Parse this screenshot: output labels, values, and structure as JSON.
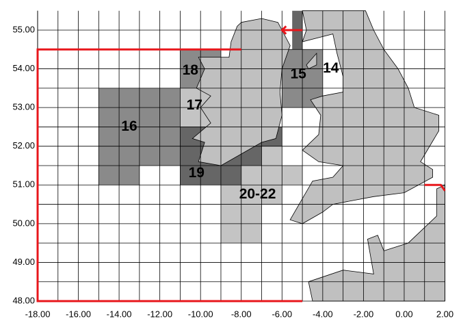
{
  "chart_data": {
    "type": "map",
    "xlim": [
      -18,
      2
    ],
    "ylim": [
      48,
      55.5
    ],
    "xticks": [
      {
        "value": -18,
        "label": "-18.00"
      },
      {
        "value": -16,
        "label": "-16.00"
      },
      {
        "value": -14,
        "label": "-14.00"
      },
      {
        "value": -12,
        "label": "-12.00"
      },
      {
        "value": -10,
        "label": "-10.00"
      },
      {
        "value": -8,
        "label": "-8.00"
      },
      {
        "value": -6,
        "label": "-6.00"
      },
      {
        "value": -4,
        "label": "-4.00"
      },
      {
        "value": -2,
        "label": "-2.00"
      },
      {
        "value": 0,
        "label": "0.00"
      },
      {
        "value": 2,
        "label": "2.00"
      }
    ],
    "yticks": [
      {
        "value": 48,
        "label": "48.00"
      },
      {
        "value": 49,
        "label": "49.00"
      },
      {
        "value": 50,
        "label": "50.00"
      },
      {
        "value": 51,
        "label": "51.00"
      },
      {
        "value": 52,
        "label": "52.00"
      },
      {
        "value": 53,
        "label": "53.00"
      },
      {
        "value": 54,
        "label": "54.00"
      },
      {
        "value": 55,
        "label": "55.00"
      }
    ],
    "xgrid": [
      -17,
      -15,
      -13,
      -11,
      -9,
      -7,
      -5,
      -3,
      -1,
      1
    ],
    "ygrid": [
      48.5,
      49.5,
      50.5,
      51.5,
      52.5,
      53.5,
      54.5
    ],
    "grid": true,
    "areas": [
      "16",
      "18",
      "17",
      "19",
      "20-22",
      "15",
      "14"
    ]
  }
}
